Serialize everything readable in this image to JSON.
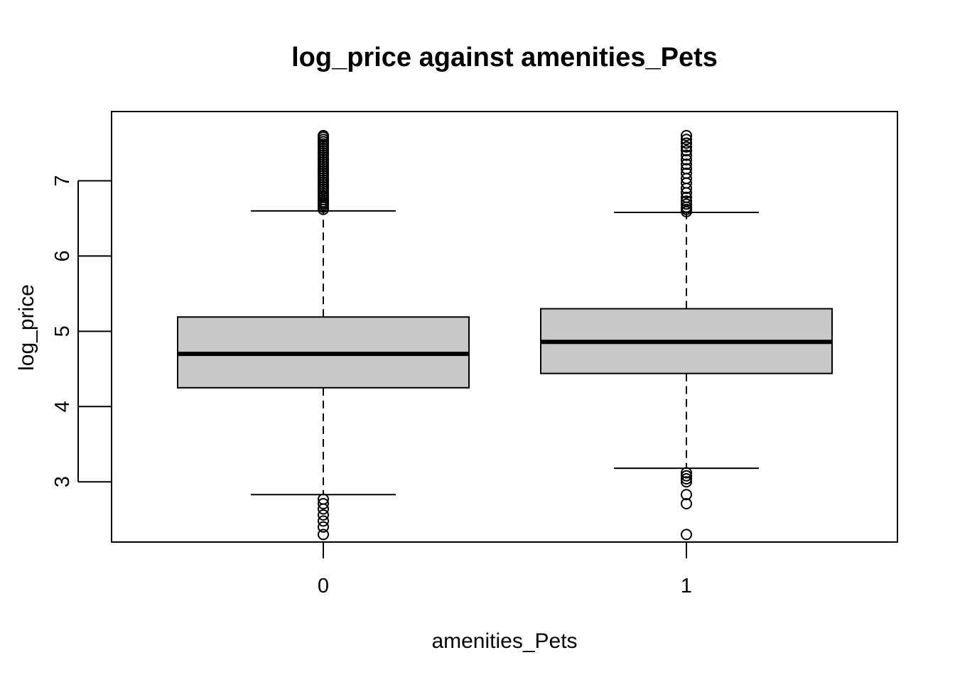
{
  "chart_data": {
    "type": "boxplot",
    "title": "log_price against amenities_Pets",
    "xlabel": "amenities_Pets",
    "ylabel": "log_price",
    "categories": [
      "0",
      "1"
    ],
    "ylim": [
      2.2,
      7.92
    ],
    "y_ticks": [
      3,
      4,
      5,
      6,
      7
    ],
    "grid": false,
    "box_fill": "#c8c8c8",
    "line_color": "#000000",
    "boxes": [
      {
        "category": "0",
        "whisker_low": 2.83,
        "q1": 4.25,
        "median": 4.7,
        "q3": 5.19,
        "whisker_high": 6.6,
        "outliers_high": [
          6.62,
          6.65,
          6.68,
          6.7,
          6.72,
          6.75,
          6.78,
          6.8,
          6.83,
          6.86,
          6.89,
          6.92,
          6.95,
          6.98,
          7.01,
          7.04,
          7.07,
          7.1,
          7.13,
          7.16,
          7.19,
          7.22,
          7.25,
          7.28,
          7.31,
          7.34,
          7.37,
          7.4,
          7.43,
          7.46,
          7.49,
          7.52,
          7.55,
          7.58,
          7.6
        ],
        "outliers_low": [
          2.3,
          2.4,
          2.48,
          2.56,
          2.64,
          2.71,
          2.77
        ]
      },
      {
        "category": "1",
        "whisker_low": 3.18,
        "q1": 4.44,
        "median": 4.86,
        "q3": 5.3,
        "whisker_high": 6.58,
        "outliers_high": [
          6.59,
          6.62,
          6.65,
          6.69,
          6.73,
          6.78,
          6.84,
          6.9,
          6.97,
          7.03,
          7.1,
          7.16,
          7.22,
          7.28,
          7.34,
          7.4,
          7.45,
          7.5,
          7.55,
          7.6
        ],
        "outliers_low": [
          2.3,
          2.71,
          2.83,
          3.0,
          3.04,
          3.08,
          3.12
        ]
      }
    ]
  }
}
